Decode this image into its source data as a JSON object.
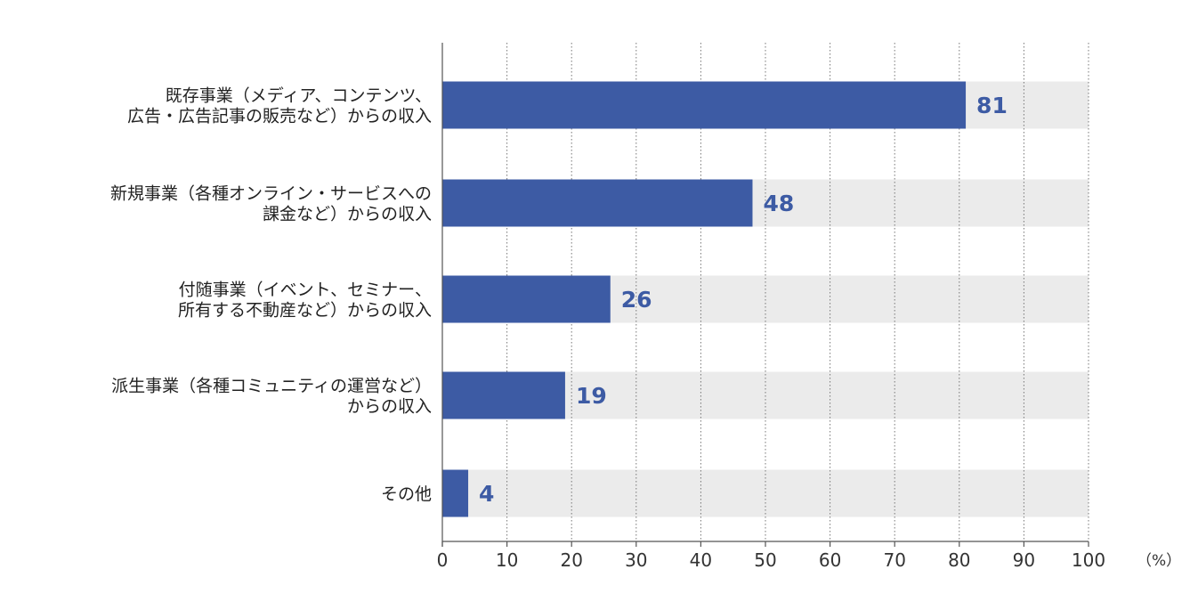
{
  "chart_data": {
    "type": "bar",
    "orientation": "horizontal",
    "categories": [
      [
        "既存事業（メディア、コンテンツ、",
        "広告・広告記事の販売など）からの収入"
      ],
      [
        "新規事業（各種オンライン・サービスへの",
        "課金など）からの収入"
      ],
      [
        "付随事業（イベント、セミナー、",
        "所有する不動産など）からの収入"
      ],
      [
        "派生事業（各種コミュニティの運営など）",
        "からの収入"
      ],
      [
        "その他"
      ]
    ],
    "values": [
      81,
      48,
      26,
      19,
      4
    ],
    "value_labels": [
      "81",
      "48",
      "26",
      "19",
      "4"
    ],
    "xlim": [
      0,
      100
    ],
    "xticks": [
      "0",
      "10",
      "20",
      "30",
      "40",
      "50",
      "60",
      "70",
      "80",
      "90",
      "100"
    ],
    "unit": "（%）",
    "grid": "vertical-dotted",
    "colors": {
      "bar": "#3d5ba4",
      "track": "#ebebeb",
      "value_text": "#3d5ba4",
      "axis": "#555555"
    }
  }
}
